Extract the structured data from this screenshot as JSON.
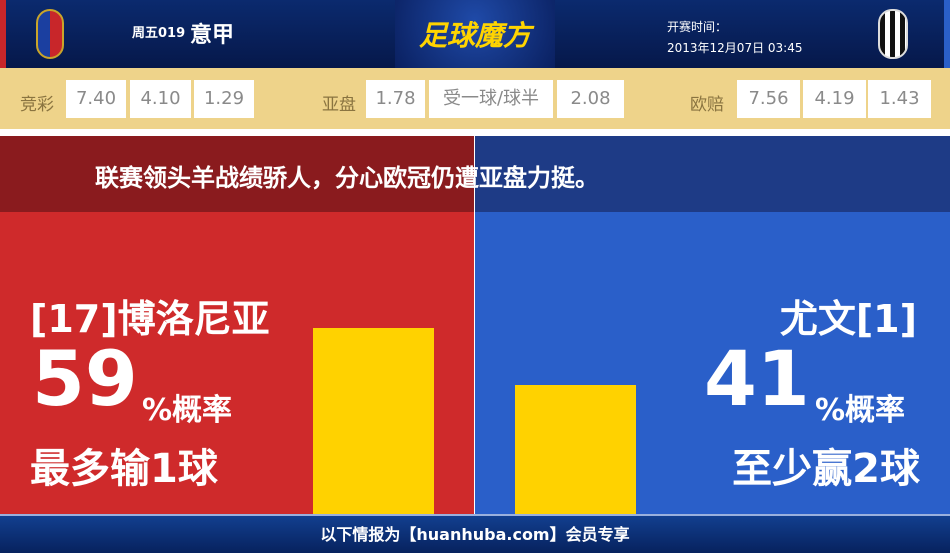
{
  "header": {
    "match_no": "周五019",
    "league": "意甲",
    "logo": "足球魔方",
    "time_label": "开赛时间：",
    "time_value": "2013年12月07日 03:45",
    "home_crest": "BFC",
    "away_crest": "JUVENTUS"
  },
  "odds": {
    "jc_label": "竞彩",
    "jc": [
      "7.40",
      "4.10",
      "1.29"
    ],
    "yp_label": "亚盘",
    "yp": [
      "1.78",
      "受一球/球半",
      "2.08"
    ],
    "oz_label": "欧赔",
    "oz": [
      "7.56",
      "4.19",
      "1.43"
    ]
  },
  "headline": "联赛领头羊战绩骄人，分心欧冠仍遭亚盘力挺。",
  "home": {
    "name": "[17]博洛尼亚",
    "percent": "59",
    "percent_suffix": "%概率",
    "outcome": "最多输1球",
    "probability": 59,
    "color": "#cf2a2b"
  },
  "away": {
    "name": "尤文[1]",
    "percent": "41",
    "percent_suffix": "%概率",
    "outcome": "至少赢2球",
    "probability": 41,
    "color": "#2a5fc9"
  },
  "footer": "以下情报为【huanhuba.com】会员专享"
}
